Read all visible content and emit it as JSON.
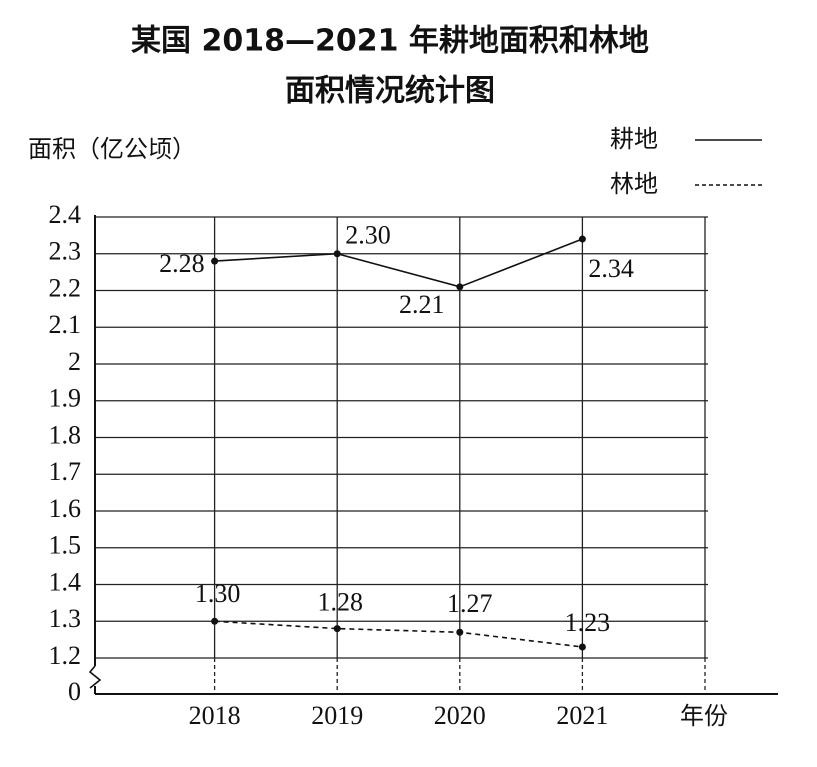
{
  "chart_data": {
    "type": "line",
    "title": [
      "某国 2018—2021 年耕地面积和林地",
      "面积情况统计图"
    ],
    "y_label": "面积（亿公顷）",
    "x_label": "年份",
    "categories": [
      "2018",
      "2019",
      "2020",
      "2021",
      null
    ],
    "series": [
      {
        "name": "耕地",
        "color": "#111111",
        "dash": false,
        "values": [
          2.28,
          2.3,
          2.21,
          2.34,
          null
        ],
        "value_labels": [
          "2.28",
          "2.30",
          "2.21",
          "2.34",
          null
        ]
      },
      {
        "name": "林地",
        "color": "#111111",
        "dash": true,
        "values": [
          1.3,
          1.28,
          1.27,
          1.23,
          null
        ],
        "value_labels": [
          "1.30",
          "1.28",
          "1.27",
          "1.23",
          null
        ]
      }
    ],
    "ylim": [
      1.2,
      2.4
    ],
    "yticks": [
      0,
      1.2,
      1.3,
      1.4,
      1.5,
      1.6,
      1.7,
      1.8,
      1.9,
      2.0,
      2.1,
      2.2,
      2.3,
      2.4
    ],
    "axis_break": true,
    "grid": true
  }
}
